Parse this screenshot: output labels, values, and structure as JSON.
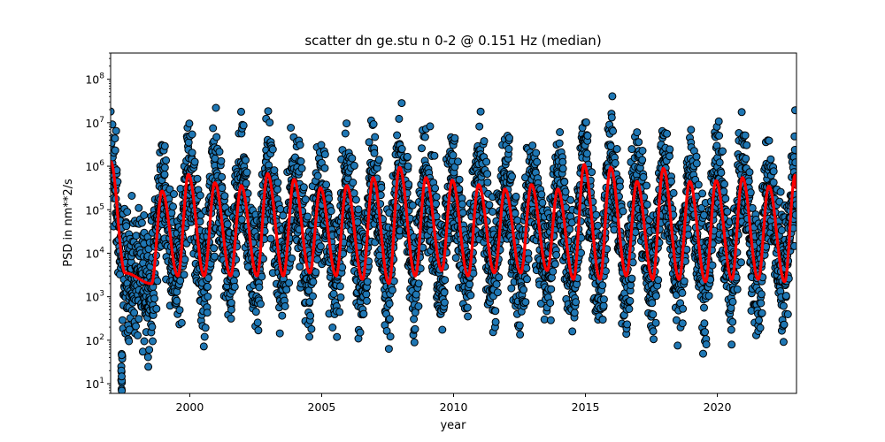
{
  "chart_data": {
    "type": "scatter",
    "title": "scatter dn ge.stu n 0-2 @ 0.151 Hz (median)",
    "xlabel": "year",
    "ylabel": "PSD in nm**2/s",
    "xlim": [
      1997.0,
      2023.0
    ],
    "ylim": [
      6,
      400000000
    ],
    "yscale": "log",
    "grid": false,
    "x_ticks": [
      2000,
      2005,
      2010,
      2015,
      2020
    ],
    "x_tick_labels": [
      "2000",
      "2005",
      "2010",
      "2015",
      "2020"
    ],
    "y_ticks": [
      10,
      100,
      1000,
      10000,
      100000,
      1000000,
      10000000,
      100000000
    ],
    "y_tick_exponents": [
      "1",
      "2",
      "3",
      "4",
      "5",
      "6",
      "7",
      "8"
    ],
    "y_tick_base": "10",
    "series": [
      {
        "kind": "scatter",
        "color": "#1f77b4",
        "edge_color": "#000000",
        "description": "daily PSD values, seasonal oscillation, ~2e3 (summer) to ~1e7 (winter), outliers down to ~10 in 1997"
      },
      {
        "kind": "line",
        "color": "#ff0000",
        "annual_peaks": [
          [
            1998.95,
            270000
          ],
          [
            1999.95,
            650000
          ],
          [
            2000.95,
            420000
          ],
          [
            2001.95,
            360000
          ],
          [
            2002.95,
            680000
          ],
          [
            2003.95,
            500000
          ],
          [
            2004.95,
            320000
          ],
          [
            2005.95,
            360000
          ],
          [
            2006.95,
            550000
          ],
          [
            2007.95,
            950000
          ],
          [
            2008.95,
            550000
          ],
          [
            2009.95,
            480000
          ],
          [
            2010.95,
            380000
          ],
          [
            2011.95,
            300000
          ],
          [
            2012.95,
            380000
          ],
          [
            2013.95,
            300000
          ],
          [
            2014.95,
            1100000
          ],
          [
            2015.95,
            950000
          ],
          [
            2016.95,
            450000
          ],
          [
            2017.95,
            900000
          ],
          [
            2018.95,
            450000
          ],
          [
            2019.95,
            470000
          ],
          [
            2020.95,
            550000
          ],
          [
            2021.95,
            350000
          ],
          [
            2022.95,
            620000
          ]
        ],
        "annual_troughs": [
          [
            1997.55,
            3500
          ],
          [
            1998.55,
            2000
          ],
          [
            1999.55,
            3000
          ],
          [
            2000.55,
            3000
          ],
          [
            2001.55,
            3000
          ],
          [
            2002.55,
            3000
          ],
          [
            2003.55,
            3000
          ],
          [
            2004.55,
            3500
          ],
          [
            2005.55,
            3000
          ],
          [
            2006.55,
            2500
          ],
          [
            2007.55,
            2000
          ],
          [
            2008.55,
            3000
          ],
          [
            2009.55,
            4000
          ],
          [
            2010.55,
            3000
          ],
          [
            2011.55,
            3500
          ],
          [
            2012.55,
            3500
          ],
          [
            2013.55,
            4000
          ],
          [
            2014.55,
            2500
          ],
          [
            2015.55,
            2500
          ],
          [
            2016.55,
            3000
          ],
          [
            2017.55,
            2500
          ],
          [
            2018.55,
            2500
          ],
          [
            2019.55,
            2200
          ],
          [
            2020.55,
            2500
          ],
          [
            2021.55,
            2500
          ],
          [
            2022.55,
            2200
          ]
        ],
        "start_value": [
          1997.0,
          1300000
        ],
        "end_value": [
          2023.0,
          300000
        ]
      }
    ]
  }
}
